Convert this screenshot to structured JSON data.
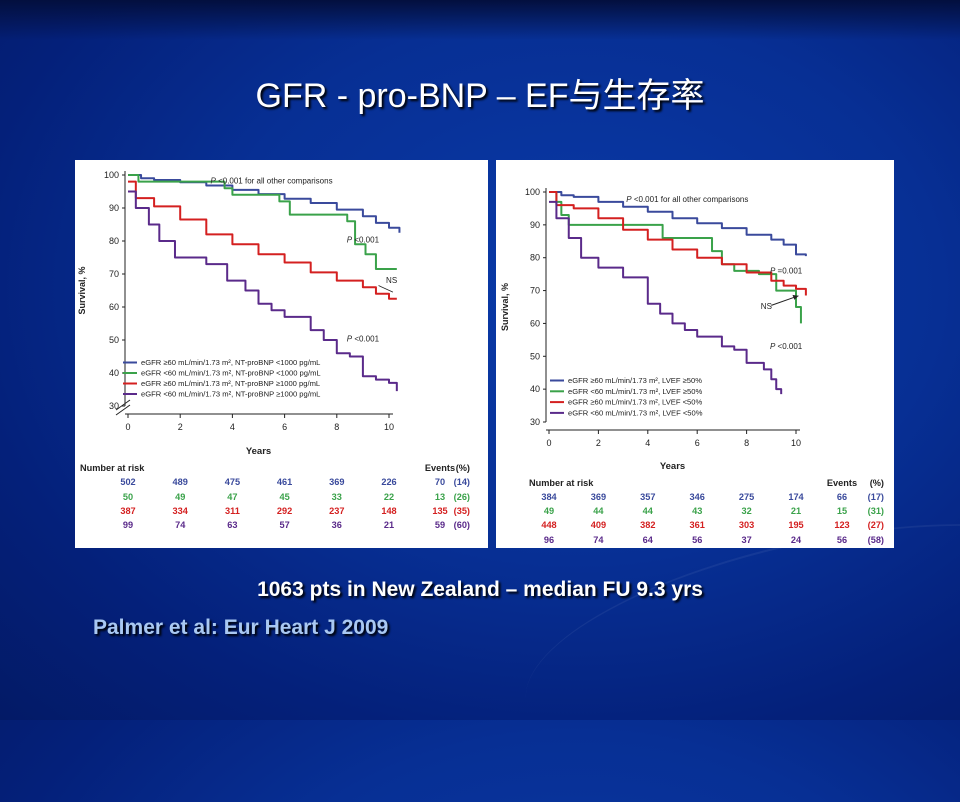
{
  "slide": {
    "title": "GFR - pro-BNP – EF与生存率",
    "caption": "1063 pts in New Zealand – median FU 9.3 yrs",
    "citation": "Palmer et al:  Eur Heart J 2009"
  },
  "chart_data": [
    {
      "type": "line",
      "ylabel": "Survival, %",
      "xlabel": "Years",
      "xlim": [
        0,
        10
      ],
      "ylim": [
        30,
        100
      ],
      "xticks": [
        0,
        2,
        4,
        6,
        8,
        10
      ],
      "yticks": [
        30,
        40,
        50,
        60,
        70,
        80,
        90,
        100
      ],
      "axis_break": true,
      "annotations": [
        {
          "text": "P <0.001 for all other comparisons",
          "x": 5.5,
          "y": 97.5
        },
        {
          "text": "P <0.001",
          "x": 9.0,
          "y": 79.5
        },
        {
          "text": "NS",
          "x": 10.1,
          "y": 67.3
        },
        {
          "text": "P <0.001",
          "x": 9.0,
          "y": 49.5
        }
      ],
      "series": [
        {
          "name": "eGFR ≥60 mL/min/1.73 m², NT-proBNP <1000 pg/mL",
          "color": "#3a4a9c",
          "points": [
            [
              0,
              100
            ],
            [
              0.5,
              99
            ],
            [
              1,
              98.5
            ],
            [
              2,
              97.8
            ],
            [
              3,
              96.8
            ],
            [
              4,
              95.5
            ],
            [
              5,
              94.2
            ],
            [
              6,
              92.8
            ],
            [
              7,
              91.5
            ],
            [
              8,
              89.5
            ],
            [
              9,
              87.5
            ],
            [
              9.5,
              85.5
            ],
            [
              10,
              84
            ],
            [
              10.4,
              82.5
            ]
          ]
        },
        {
          "name": "eGFR <60 mL/min/1.73 m², NT-proBNP <1000 pg/mL",
          "color": "#3aa24a",
          "points": [
            [
              0,
              100
            ],
            [
              0.4,
              98
            ],
            [
              2,
              98
            ],
            [
              3.7,
              96
            ],
            [
              4,
              94
            ],
            [
              5.8,
              94
            ],
            [
              5.8,
              92
            ],
            [
              6.2,
              88
            ],
            [
              8.4,
              88
            ],
            [
              8.4,
              86
            ],
            [
              8.7,
              79
            ],
            [
              9.1,
              76
            ],
            [
              9.5,
              71.5
            ],
            [
              10.3,
              71.5
            ]
          ]
        },
        {
          "name": "eGFR ≥60 mL/min/1.73 m², NT-proBNP ≥1000 pg/mL",
          "color": "#d42020",
          "points": [
            [
              0,
              98
            ],
            [
              0.3,
              93
            ],
            [
              1,
              90.5
            ],
            [
              2,
              86.5
            ],
            [
              3,
              82
            ],
            [
              4,
              79
            ],
            [
              5,
              76
            ],
            [
              6,
              73.5
            ],
            [
              7,
              70.5
            ],
            [
              8,
              68
            ],
            [
              9,
              66
            ],
            [
              9.5,
              64
            ],
            [
              10,
              62.5
            ],
            [
              10.3,
              62.5
            ]
          ]
        },
        {
          "name": "eGFR <60 mL/min/1.73 m², NT-proBNP ≥1000 pg/mL",
          "color": "#5a2a8a",
          "points": [
            [
              0,
              95
            ],
            [
              0.3,
              90
            ],
            [
              0.8,
              85
            ],
            [
              1.2,
              80
            ],
            [
              1.8,
              75
            ],
            [
              3,
              73
            ],
            [
              3.8,
              68
            ],
            [
              4.5,
              65
            ],
            [
              5,
              61
            ],
            [
              5.5,
              59
            ],
            [
              6,
              57
            ],
            [
              7,
              53
            ],
            [
              7.5,
              50
            ],
            [
              8,
              46
            ],
            [
              8.5,
              45
            ],
            [
              9,
              39
            ],
            [
              9.5,
              38
            ],
            [
              10,
              37
            ],
            [
              10.3,
              34.5
            ]
          ]
        }
      ],
      "risk_table": {
        "header": "Number at risk",
        "columns": [
          "0",
          "2",
          "4",
          "6",
          "8",
          "10"
        ],
        "events_header": "Events",
        "pct_header": "(%)",
        "rows": [
          {
            "values": [
              "502",
              "489",
              "475",
              "461",
              "369",
              "226"
            ],
            "events": "70",
            "pct": "(14)",
            "color": "#3a4a9c"
          },
          {
            "values": [
              "50",
              "49",
              "47",
              "45",
              "33",
              "22"
            ],
            "events": "13",
            "pct": "(26)",
            "color": "#3aa24a"
          },
          {
            "values": [
              "387",
              "334",
              "311",
              "292",
              "237",
              "148"
            ],
            "events": "135",
            "pct": "(35)",
            "color": "#d42020"
          },
          {
            "values": [
              "99",
              "74",
              "63",
              "57",
              "36",
              "21"
            ],
            "events": "59",
            "pct": "(60)",
            "color": "#5a2a8a"
          }
        ]
      }
    },
    {
      "type": "line",
      "ylabel": "Survival, %",
      "xlabel": "Years",
      "xlim": [
        0,
        10
      ],
      "ylim": [
        30,
        100
      ],
      "xticks": [
        0,
        2,
        4,
        6,
        8,
        10
      ],
      "yticks": [
        30,
        40,
        50,
        60,
        70,
        80,
        90,
        100
      ],
      "axis_break": false,
      "annotations": [
        {
          "text": "P <0.001 for all other comparisons",
          "x": 5.6,
          "y": 97
        },
        {
          "text": "P =0.001",
          "x": 9.6,
          "y": 75.2
        },
        {
          "text": "NS",
          "x": 8.8,
          "y": 64.4
        },
        {
          "text": "P <0.001",
          "x": 9.6,
          "y": 52.2
        }
      ],
      "series": [
        {
          "name": "eGFR ≥60 mL/min/1.73 m², LVEF ≥50%",
          "color": "#3a4a9c",
          "points": [
            [
              0,
              100
            ],
            [
              0.5,
              99
            ],
            [
              1,
              98.5
            ],
            [
              2,
              97
            ],
            [
              3,
              95.5
            ],
            [
              4,
              94
            ],
            [
              5,
              92
            ],
            [
              6,
              90.5
            ],
            [
              7,
              89
            ],
            [
              8,
              87
            ],
            [
              9,
              85.5
            ],
            [
              9.5,
              84
            ],
            [
              10,
              81
            ],
            [
              10.4,
              80.5
            ]
          ]
        },
        {
          "name": "eGFR <60 mL/min/1.73 m², LVEF ≥50%",
          "color": "#3aa24a",
          "points": [
            [
              0,
              100
            ],
            [
              0.3,
              97
            ],
            [
              0.5,
              93
            ],
            [
              0.8,
              90
            ],
            [
              4.5,
              90
            ],
            [
              4.6,
              86
            ],
            [
              6.5,
              86
            ],
            [
              6.6,
              82
            ],
            [
              7,
              78
            ],
            [
              7.5,
              76
            ],
            [
              8.5,
              75
            ],
            [
              9.2,
              70
            ],
            [
              9.6,
              70
            ],
            [
              10,
              65
            ],
            [
              10.2,
              60
            ]
          ]
        },
        {
          "name": "eGFR ≥60 mL/min/1.73 m², LVEF <50%",
          "color": "#d42020",
          "points": [
            [
              0,
              100
            ],
            [
              0.3,
              96
            ],
            [
              1,
              95
            ],
            [
              2,
              92
            ],
            [
              3,
              88.5
            ],
            [
              4,
              85.5
            ],
            [
              5,
              82.5
            ],
            [
              6,
              80
            ],
            [
              7,
              78
            ],
            [
              8,
              75.5
            ],
            [
              9,
              73
            ],
            [
              9.5,
              71.5
            ],
            [
              10,
              70.5
            ],
            [
              10.4,
              68.5
            ]
          ]
        },
        {
          "name": "eGFR <60 mL/min/1.73 m², LVEF <50%",
          "color": "#5a2a8a",
          "points": [
            [
              0,
              97
            ],
            [
              0.3,
              92
            ],
            [
              0.8,
              86
            ],
            [
              1.3,
              80
            ],
            [
              2,
              77
            ],
            [
              3,
              74
            ],
            [
              4,
              66
            ],
            [
              4.5,
              63
            ],
            [
              5,
              60
            ],
            [
              5.5,
              58
            ],
            [
              6,
              56
            ],
            [
              7,
              53
            ],
            [
              7.5,
              52
            ],
            [
              8,
              48
            ],
            [
              8.7,
              46
            ],
            [
              9,
              43
            ],
            [
              9.2,
              40
            ],
            [
              9.4,
              38.5
            ]
          ]
        }
      ],
      "risk_table": {
        "header": "Number at risk",
        "columns": [
          "0",
          "2",
          "4",
          "6",
          "8",
          "10"
        ],
        "events_header": "Events",
        "pct_header": "(%)",
        "rows": [
          {
            "values": [
              "384",
              "369",
              "357",
              "346",
              "275",
              "174"
            ],
            "events": "66",
            "pct": "(17)",
            "color": "#3a4a9c"
          },
          {
            "values": [
              "49",
              "44",
              "44",
              "43",
              "32",
              "21"
            ],
            "events": "15",
            "pct": "(31)",
            "color": "#3aa24a"
          },
          {
            "values": [
              "448",
              "409",
              "382",
              "361",
              "303",
              "195"
            ],
            "events": "123",
            "pct": "(27)",
            "color": "#d42020"
          },
          {
            "values": [
              "96",
              "74",
              "64",
              "56",
              "37",
              "24"
            ],
            "events": "56",
            "pct": "(58)",
            "color": "#5a2a8a"
          }
        ]
      }
    }
  ]
}
